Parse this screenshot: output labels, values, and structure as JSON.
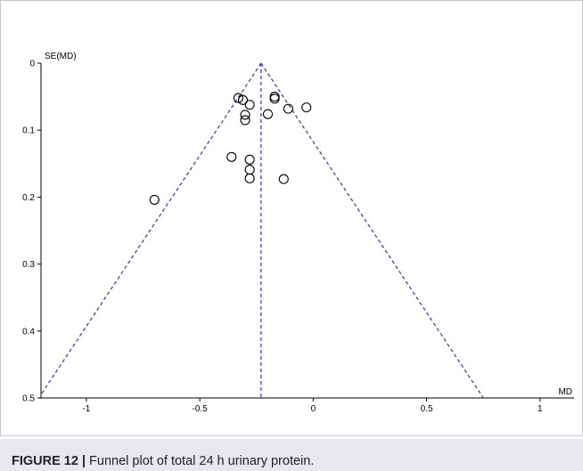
{
  "chart_data": {
    "type": "scatter",
    "title": "",
    "xlabel": "MD",
    "ylabel": "SE(MD)",
    "xlim": [
      -1.2,
      1.15
    ],
    "ylim": [
      0,
      0.5
    ],
    "y_reversed": true,
    "xticks": [
      "-1",
      "-0.5",
      "0",
      "0.5",
      "1"
    ],
    "xtick_values": [
      -1,
      -0.5,
      0,
      0.5,
      1
    ],
    "yticks": [
      "0",
      "0.1",
      "0.2",
      "0.3",
      "0.4",
      "0.5"
    ],
    "ytick_values": [
      0,
      0.1,
      0.2,
      0.3,
      0.4,
      0.5
    ],
    "pooled_md": -0.23,
    "funnel_line_color": "#3333cc",
    "marker": "open circle",
    "points": [
      {
        "x": -0.33,
        "y": 0.052
      },
      {
        "x": -0.31,
        "y": 0.055
      },
      {
        "x": -0.28,
        "y": 0.062
      },
      {
        "x": -0.3,
        "y": 0.077
      },
      {
        "x": -0.3,
        "y": 0.085
      },
      {
        "x": -0.17,
        "y": 0.05
      },
      {
        "x": -0.17,
        "y": 0.053
      },
      {
        "x": -0.2,
        "y": 0.076
      },
      {
        "x": -0.11,
        "y": 0.068
      },
      {
        "x": -0.03,
        "y": 0.066
      },
      {
        "x": -0.36,
        "y": 0.14
      },
      {
        "x": -0.28,
        "y": 0.144
      },
      {
        "x": -0.28,
        "y": 0.159
      },
      {
        "x": -0.28,
        "y": 0.172
      },
      {
        "x": -0.13,
        "y": 0.173
      },
      {
        "x": -0.7,
        "y": 0.204
      }
    ]
  },
  "caption": {
    "label": "FIGURE 12 |",
    "text": " Funnel plot of total 24 h urinary protein."
  }
}
